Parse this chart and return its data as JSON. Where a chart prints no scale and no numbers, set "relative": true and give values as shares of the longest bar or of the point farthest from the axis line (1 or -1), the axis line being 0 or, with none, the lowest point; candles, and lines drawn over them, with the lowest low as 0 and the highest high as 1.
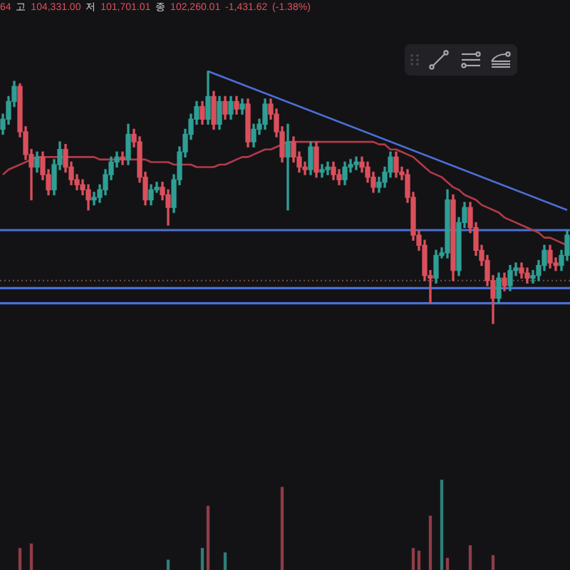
{
  "chart_data": [
    {
      "type": "candlestick",
      "relative": true,
      "tick_labels": false,
      "annotations": [
        "64 고 104,331.00 저 101,701.01 종 102,260.01 -1,431.62 (-1.38%)"
      ],
      "categories": [
        null,
        null,
        null,
        null,
        null,
        null,
        null,
        null,
        null,
        null,
        null,
        null,
        null,
        null,
        null,
        null,
        null,
        null,
        null,
        null,
        null,
        null,
        null,
        null,
        null,
        null,
        null,
        null,
        null,
        null,
        null,
        null,
        null,
        null,
        null,
        null,
        null,
        null,
        null,
        null,
        null,
        null,
        null,
        null,
        null,
        null,
        null,
        null,
        null,
        null,
        null,
        null,
        null,
        null,
        null,
        null,
        null,
        null,
        null,
        null,
        null,
        null,
        null,
        null,
        null,
        null,
        null,
        null,
        null,
        null,
        null,
        null,
        null,
        null,
        null,
        null,
        null,
        null,
        null,
        null,
        null,
        null,
        null,
        null,
        null,
        null,
        null,
        null,
        null,
        null,
        null,
        null,
        null,
        null,
        null,
        null,
        null,
        null,
        null,
        null
      ],
      "ohlc": [
        [
          0.77,
          0.83,
          0.75,
          0.81
        ],
        [
          0.81,
          0.9,
          0.79,
          0.88
        ],
        [
          0.88,
          0.96,
          0.86,
          0.94
        ],
        [
          0.94,
          0.95,
          0.74,
          0.76
        ],
        [
          0.76,
          0.78,
          0.65,
          0.67
        ],
        [
          0.67,
          0.69,
          0.49,
          0.62
        ],
        [
          0.62,
          0.68,
          0.6,
          0.66
        ],
        [
          0.66,
          0.68,
          0.57,
          0.59
        ],
        [
          0.59,
          0.61,
          0.51,
          0.53
        ],
        [
          0.53,
          0.65,
          0.51,
          0.63
        ],
        [
          0.63,
          0.72,
          0.61,
          0.69
        ],
        [
          0.69,
          0.71,
          0.6,
          0.62
        ],
        [
          0.62,
          0.64,
          0.55,
          0.57
        ],
        [
          0.57,
          0.59,
          0.53,
          0.55
        ],
        [
          0.55,
          0.57,
          0.51,
          0.53
        ],
        [
          0.53,
          0.55,
          0.45,
          0.49
        ],
        [
          0.49,
          0.52,
          0.47,
          0.5
        ],
        [
          0.5,
          0.55,
          0.48,
          0.53
        ],
        [
          0.53,
          0.61,
          0.51,
          0.59
        ],
        [
          0.59,
          0.66,
          0.57,
          0.64
        ],
        [
          0.64,
          0.68,
          0.62,
          0.66
        ],
        [
          0.66,
          0.68,
          0.63,
          0.65
        ],
        [
          0.65,
          0.79,
          0.63,
          0.75
        ],
        [
          0.75,
          0.77,
          0.7,
          0.72
        ],
        [
          0.72,
          0.74,
          0.56,
          0.58
        ],
        [
          0.58,
          0.6,
          0.47,
          0.49
        ],
        [
          0.49,
          0.55,
          0.47,
          0.53
        ],
        [
          0.53,
          0.56,
          0.52,
          0.54
        ],
        [
          0.54,
          0.56,
          0.49,
          0.51
        ],
        [
          0.51,
          0.53,
          0.39,
          0.46
        ],
        [
          0.46,
          0.59,
          0.44,
          0.57
        ],
        [
          0.57,
          0.7,
          0.55,
          0.68
        ],
        [
          0.68,
          0.77,
          0.66,
          0.75
        ],
        [
          0.75,
          0.83,
          0.73,
          0.81
        ],
        [
          0.81,
          0.88,
          0.79,
          0.86
        ],
        [
          0.86,
          0.88,
          0.79,
          0.81
        ],
        [
          0.81,
          1.0,
          0.79,
          0.9
        ],
        [
          0.9,
          0.92,
          0.77,
          0.79
        ],
        [
          0.79,
          0.9,
          0.77,
          0.88
        ],
        [
          0.88,
          0.9,
          0.81,
          0.83
        ],
        [
          0.83,
          0.9,
          0.81,
          0.88
        ],
        [
          0.88,
          0.9,
          0.83,
          0.85
        ],
        [
          0.85,
          0.89,
          0.83,
          0.87
        ],
        [
          0.87,
          0.89,
          0.7,
          0.72
        ],
        [
          0.72,
          0.79,
          0.7,
          0.77
        ],
        [
          0.77,
          0.81,
          0.75,
          0.79
        ],
        [
          0.79,
          0.89,
          0.77,
          0.87
        ],
        [
          0.87,
          0.89,
          0.81,
          0.83
        ],
        [
          0.83,
          0.85,
          0.74,
          0.76
        ],
        [
          0.76,
          0.78,
          0.64,
          0.66
        ],
        [
          0.66,
          0.79,
          0.45,
          0.72
        ],
        [
          0.72,
          0.74,
          0.64,
          0.66
        ],
        [
          0.66,
          0.68,
          0.6,
          0.62
        ],
        [
          0.62,
          0.64,
          0.59,
          0.61
        ],
        [
          0.61,
          0.72,
          0.59,
          0.7
        ],
        [
          0.7,
          0.72,
          0.58,
          0.6
        ],
        [
          0.6,
          0.63,
          0.58,
          0.61
        ],
        [
          0.61,
          0.64,
          0.59,
          0.62
        ],
        [
          0.62,
          0.64,
          0.57,
          0.59
        ],
        [
          0.59,
          0.61,
          0.55,
          0.57
        ],
        [
          0.57,
          0.64,
          0.55,
          0.62
        ],
        [
          0.62,
          0.65,
          0.6,
          0.63
        ],
        [
          0.63,
          0.66,
          0.61,
          0.64
        ],
        [
          0.64,
          0.66,
          0.6,
          0.62
        ],
        [
          0.62,
          0.64,
          0.56,
          0.58
        ],
        [
          0.58,
          0.6,
          0.52,
          0.54
        ],
        [
          0.54,
          0.58,
          0.52,
          0.56
        ],
        [
          0.56,
          0.62,
          0.54,
          0.6
        ],
        [
          0.6,
          0.68,
          0.58,
          0.66
        ],
        [
          0.66,
          0.68,
          0.58,
          0.6
        ],
        [
          0.6,
          0.62,
          0.57,
          0.59
        ],
        [
          0.59,
          0.61,
          0.48,
          0.5
        ],
        [
          0.5,
          0.52,
          0.33,
          0.35
        ],
        [
          0.35,
          0.37,
          0.29,
          0.31
        ],
        [
          0.31,
          0.33,
          0.17,
          0.19
        ],
        [
          0.19,
          0.21,
          0.08,
          0.18
        ],
        [
          0.18,
          0.29,
          0.16,
          0.27
        ],
        [
          0.27,
          0.3,
          0.26,
          0.28
        ],
        [
          0.28,
          0.53,
          0.26,
          0.49
        ],
        [
          0.49,
          0.51,
          0.17,
          0.21
        ],
        [
          0.21,
          0.42,
          0.19,
          0.4
        ],
        [
          0.4,
          0.48,
          0.38,
          0.46
        ],
        [
          0.46,
          0.48,
          0.36,
          0.38
        ],
        [
          0.38,
          0.4,
          0.27,
          0.29
        ],
        [
          0.29,
          0.31,
          0.23,
          0.25
        ],
        [
          0.25,
          0.27,
          0.15,
          0.17
        ],
        [
          0.17,
          0.19,
          0.0,
          0.1
        ],
        [
          0.1,
          0.2,
          0.08,
          0.18
        ],
        [
          0.18,
          0.2,
          0.13,
          0.15
        ],
        [
          0.15,
          0.23,
          0.13,
          0.21
        ],
        [
          0.21,
          0.24,
          0.19,
          0.22
        ],
        [
          0.22,
          0.24,
          0.18,
          0.2
        ],
        [
          0.2,
          0.22,
          0.16,
          0.18
        ],
        [
          0.18,
          0.21,
          0.16,
          0.19
        ],
        [
          0.19,
          0.25,
          0.17,
          0.23
        ],
        [
          0.23,
          0.31,
          0.21,
          0.29
        ],
        [
          0.29,
          0.31,
          0.22,
          0.24
        ],
        [
          0.24,
          0.26,
          0.21,
          0.23
        ],
        [
          0.23,
          0.29,
          0.21,
          0.27
        ],
        [
          0.27,
          0.37,
          0.25,
          0.35
        ]
      ],
      "colors": [
        "#2f9e94",
        "#2f9e94",
        "#2f9e94",
        "#d9505c",
        "#d9505c",
        "#d9505c",
        "#2f9e94",
        "#d9505c",
        "#d9505c",
        "#2f9e94",
        "#2f9e94",
        "#d9505c",
        "#d9505c",
        "#d9505c",
        "#d9505c",
        "#d9505c",
        "#2f9e94",
        "#2f9e94",
        "#2f9e94",
        "#2f9e94",
        "#2f9e94",
        "#d9505c",
        "#2f9e94",
        "#d9505c",
        "#d9505c",
        "#d9505c",
        "#2f9e94",
        "#2f9e94",
        "#d9505c",
        "#d9505c",
        "#2f9e94",
        "#2f9e94",
        "#2f9e94",
        "#2f9e94",
        "#2f9e94",
        "#d9505c",
        "#2f9e94",
        "#d9505c",
        "#2f9e94",
        "#d9505c",
        "#2f9e94",
        "#d9505c",
        "#2f9e94",
        "#d9505c",
        "#2f9e94",
        "#2f9e94",
        "#2f9e94",
        "#d9505c",
        "#d9505c",
        "#d9505c",
        "#2f9e94",
        "#d9505c",
        "#d9505c",
        "#d9505c",
        "#2f9e94",
        "#d9505c",
        "#2f9e94",
        "#2f9e94",
        "#d9505c",
        "#d9505c",
        "#2f9e94",
        "#2f9e94",
        "#2f9e94",
        "#d9505c",
        "#d9505c",
        "#d9505c",
        "#2f9e94",
        "#2f9e94",
        "#2f9e94",
        "#d9505c",
        "#d9505c",
        "#d9505c",
        "#d9505c",
        "#d9505c",
        "#d9505c",
        "#d9505c",
        "#2f9e94",
        "#2f9e94",
        "#2f9e94",
        "#d9505c",
        "#2f9e94",
        "#2f9e94",
        "#d9505c",
        "#d9505c",
        "#d9505c",
        "#d9505c",
        "#d9505c",
        "#2f9e94",
        "#d9505c",
        "#2f9e94",
        "#2f9e94",
        "#d9505c",
        "#d9505c",
        "#2f9e94",
        "#2f9e94",
        "#2f9e94",
        "#d9505c",
        "#d9505c",
        "#2f9e94",
        "#2f9e94"
      ],
      "series": [
        {
          "type": "line",
          "color": "#b23a48",
          "values": [
            0.59,
            0.61,
            0.62,
            0.63,
            0.64,
            0.65,
            0.66,
            0.66,
            0.66,
            0.66,
            0.66,
            0.66,
            0.66,
            0.66,
            0.66,
            0.66,
            0.66,
            0.65,
            0.65,
            0.65,
            0.65,
            0.65,
            0.65,
            0.65,
            0.65,
            0.65,
            0.64,
            0.64,
            0.64,
            0.64,
            0.63,
            0.63,
            0.63,
            0.63,
            0.62,
            0.62,
            0.62,
            0.62,
            0.63,
            0.63,
            0.64,
            0.65,
            0.66,
            0.66,
            0.67,
            0.68,
            0.69,
            0.69,
            0.7,
            0.71,
            0.72,
            0.72,
            0.72,
            0.72,
            0.72,
            0.72,
            0.72,
            0.72,
            0.72,
            0.72,
            0.72,
            0.72,
            0.72,
            0.72,
            0.72,
            0.72,
            0.71,
            0.71,
            0.69,
            0.69,
            0.68,
            0.67,
            0.66,
            0.64,
            0.62,
            0.6,
            0.59,
            0.58,
            0.56,
            0.54,
            0.53,
            0.51,
            0.5,
            0.49,
            0.47,
            0.46,
            0.45,
            0.44,
            0.42,
            0.41,
            0.4,
            0.39,
            0.38,
            0.37,
            0.36,
            0.34,
            0.34,
            0.33,
            0.32,
            0.31
          ]
        },
        {
          "type": "line",
          "color": "#4b6fd6",
          "values": [
            null,
            null,
            null,
            null,
            null,
            null,
            null,
            null,
            null,
            null,
            null,
            null,
            null,
            null,
            null,
            null,
            null,
            null,
            null,
            null,
            null,
            null,
            null,
            null,
            null,
            null,
            null,
            null,
            null,
            null,
            null,
            null,
            null,
            null,
            null,
            null,
            1.0,
            null,
            null,
            null,
            null,
            null,
            null,
            null,
            null,
            null,
            null,
            null,
            null,
            null,
            null,
            null,
            null,
            null,
            null,
            null,
            null,
            null,
            null,
            null,
            null,
            null,
            null,
            null,
            null,
            null,
            null,
            null,
            null,
            null,
            null,
            null,
            null,
            null,
            null,
            null,
            null,
            null,
            null,
            null,
            null,
            null,
            null,
            null,
            null,
            null,
            null,
            null,
            null,
            null,
            null,
            null,
            null,
            null,
            null,
            null,
            null,
            null,
            null,
            0.45
          ]
        }
      ],
      "ref_lines": [
        {
          "axis": "y",
          "value": 0.37,
          "color": "#4b6fd6"
        },
        {
          "axis": "y",
          "value": 0.17,
          "color": "#7a4a3c",
          "line_style": "dotted"
        },
        {
          "axis": "y",
          "value": 0.14,
          "color": "#4b6fd6"
        },
        {
          "axis": "y",
          "value": 0.08,
          "color": "#4b6fd6"
        }
      ]
    },
    {
      "type": "bar",
      "relative": true,
      "tick_labels": false,
      "categories": [
        null,
        null,
        null,
        null,
        null,
        null,
        null,
        null,
        null,
        null,
        null,
        null,
        null,
        null,
        null,
        null,
        null,
        null,
        null,
        null,
        null,
        null,
        null,
        null,
        null,
        null,
        null,
        null,
        null,
        null,
        null,
        null,
        null,
        null,
        null,
        null,
        null,
        null,
        null,
        null,
        null,
        null,
        null,
        null,
        null,
        null,
        null,
        null,
        null,
        null,
        null,
        null,
        null,
        null,
        null,
        null,
        null,
        null,
        null,
        null,
        null,
        null,
        null,
        null,
        null,
        null,
        null,
        null,
        null,
        null,
        null,
        null,
        null,
        null,
        null,
        null,
        null,
        null,
        null,
        null,
        null,
        null,
        null,
        null,
        null,
        null,
        null,
        null,
        null,
        null,
        null,
        null,
        null,
        null,
        null,
        null,
        null,
        null,
        null,
        null
      ],
      "values": [
        null,
        null,
        null,
        0.24,
        null,
        0.29,
        null,
        null,
        null,
        null,
        null,
        null,
        null,
        null,
        null,
        null,
        null,
        null,
        null,
        null,
        null,
        null,
        null,
        null,
        null,
        null,
        null,
        null,
        null,
        0.11,
        null,
        null,
        null,
        null,
        null,
        0.24,
        0.71,
        null,
        null,
        0.19,
        null,
        null,
        null,
        null,
        null,
        null,
        null,
        null,
        null,
        0.92,
        null,
        null,
        null,
        null,
        null,
        null,
        null,
        null,
        null,
        null,
        null,
        null,
        null,
        null,
        null,
        null,
        null,
        null,
        null,
        null,
        null,
        null,
        0.24,
        0.21,
        null,
        0.6,
        null,
        1.0,
        0.13,
        null,
        null,
        null,
        0.27,
        null,
        null,
        null,
        0.16,
        null,
        null,
        null,
        null,
        null,
        null,
        null,
        null,
        null,
        null,
        null,
        null,
        null
      ],
      "colors": [
        null,
        null,
        null,
        "#8f3d48",
        null,
        "#8f3d48",
        null,
        null,
        null,
        null,
        null,
        null,
        null,
        null,
        null,
        null,
        null,
        null,
        null,
        null,
        null,
        null,
        null,
        null,
        null,
        null,
        null,
        null,
        null,
        "#2e7f78",
        null,
        null,
        null,
        null,
        null,
        "#2e7f78",
        "#8f3d48",
        null,
        null,
        "#2e7f78",
        null,
        null,
        null,
        null,
        null,
        null,
        null,
        null,
        null,
        "#8f3d48",
        null,
        null,
        null,
        null,
        null,
        null,
        null,
        null,
        null,
        null,
        null,
        null,
        null,
        null,
        null,
        null,
        null,
        null,
        null,
        null,
        null,
        null,
        "#8f3d48",
        "#8f3d48",
        null,
        "#8f3d48",
        null,
        "#2e7f78",
        "#8f3d48",
        null,
        null,
        null,
        "#8f3d48",
        null,
        null,
        null,
        "#8f3d48",
        null,
        null,
        null,
        null,
        null,
        null,
        null,
        null,
        null,
        null,
        null,
        null,
        null
      ]
    }
  ]
}
